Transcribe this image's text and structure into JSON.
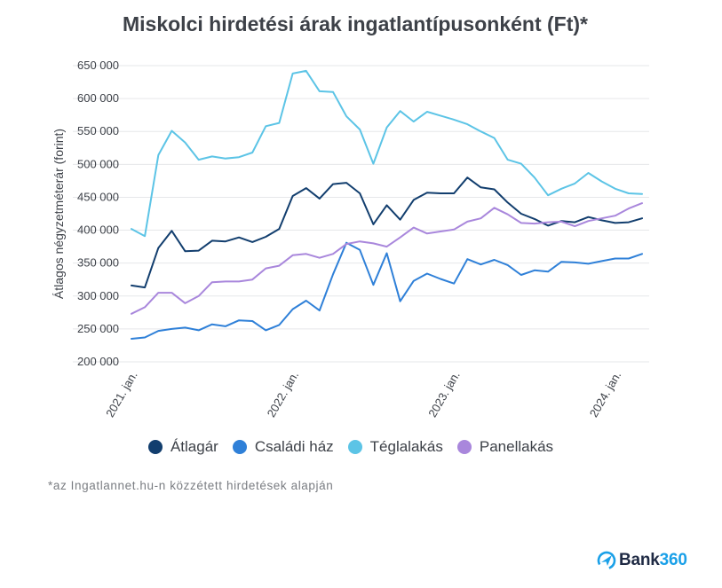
{
  "title": "Miskolci hirdetési árak ingatlantípusonként (Ft)*",
  "footnote": "*az Ingatlannet.hu-n közzétett hirdetések alapján",
  "logo": {
    "text_main": "Bank",
    "text_accent": "360"
  },
  "chart_data": {
    "type": "line",
    "ylabel": "Átlagos négyzetméterár (forint)",
    "ylim": [
      200000,
      650000
    ],
    "yticks": [
      200000,
      250000,
      300000,
      350000,
      400000,
      450000,
      500000,
      550000,
      600000,
      650000
    ],
    "ytick_labels": [
      "200 000",
      "250 000",
      "300 000",
      "350 000",
      "400 000",
      "450 000",
      "500 000",
      "550 000",
      "600 000",
      "650 000"
    ],
    "xtick_labels": [
      {
        "label": "2021. jan.",
        "index": 0
      },
      {
        "label": "2022. jan.",
        "index": 12
      },
      {
        "label": "2023. jan.",
        "index": 24
      },
      {
        "label": "2024. jan.",
        "index": 36
      }
    ],
    "grid": "horizontal",
    "legend": "bottom",
    "series": [
      {
        "name": "Átlagár",
        "color": "#123e6e",
        "values": [
          316000,
          313000,
          373000,
          399000,
          368000,
          369000,
          384000,
          383000,
          389000,
          382000,
          390000,
          402000,
          452000,
          464000,
          448000,
          470000,
          472000,
          456000,
          409000,
          438000,
          416000,
          446000,
          457000,
          456000,
          456000,
          480000,
          465000,
          462000,
          442000,
          425000,
          417000,
          407000,
          414000,
          412000,
          420000,
          415000,
          411000,
          412000,
          418000
        ]
      },
      {
        "name": "Családi ház",
        "color": "#2f80d8",
        "values": [
          235000,
          237000,
          247000,
          250000,
          252000,
          248000,
          257000,
          254000,
          263000,
          262000,
          248000,
          256000,
          280000,
          293000,
          278000,
          333000,
          381000,
          370000,
          317000,
          365000,
          292000,
          323000,
          334000,
          326000,
          319000,
          356000,
          348000,
          355000,
          347000,
          332000,
          339000,
          337000,
          352000,
          351000,
          349000,
          353000,
          357000,
          357000,
          364000
        ]
      },
      {
        "name": "Téglalakás",
        "color": "#5cc4e6",
        "values": [
          402000,
          391000,
          514000,
          551000,
          533000,
          507000,
          512000,
          509000,
          511000,
          518000,
          558000,
          563000,
          638000,
          642000,
          611000,
          610000,
          573000,
          553000,
          501000,
          556000,
          581000,
          565000,
          580000,
          574000,
          568000,
          561000,
          550000,
          540000,
          507000,
          501000,
          480000,
          453000,
          463000,
          471000,
          487000,
          474000,
          463000,
          456000,
          455000
        ]
      },
      {
        "name": "Panellakás",
        "color": "#a987dc",
        "values": [
          273000,
          283000,
          305000,
          305000,
          289000,
          300000,
          321000,
          322000,
          322000,
          325000,
          342000,
          346000,
          362000,
          364000,
          358000,
          364000,
          379000,
          383000,
          380000,
          375000,
          389000,
          404000,
          395000,
          398000,
          401000,
          413000,
          418000,
          434000,
          424000,
          411000,
          410000,
          412000,
          413000,
          406000,
          414000,
          418000,
          422000,
          433000,
          441000
        ]
      }
    ]
  }
}
